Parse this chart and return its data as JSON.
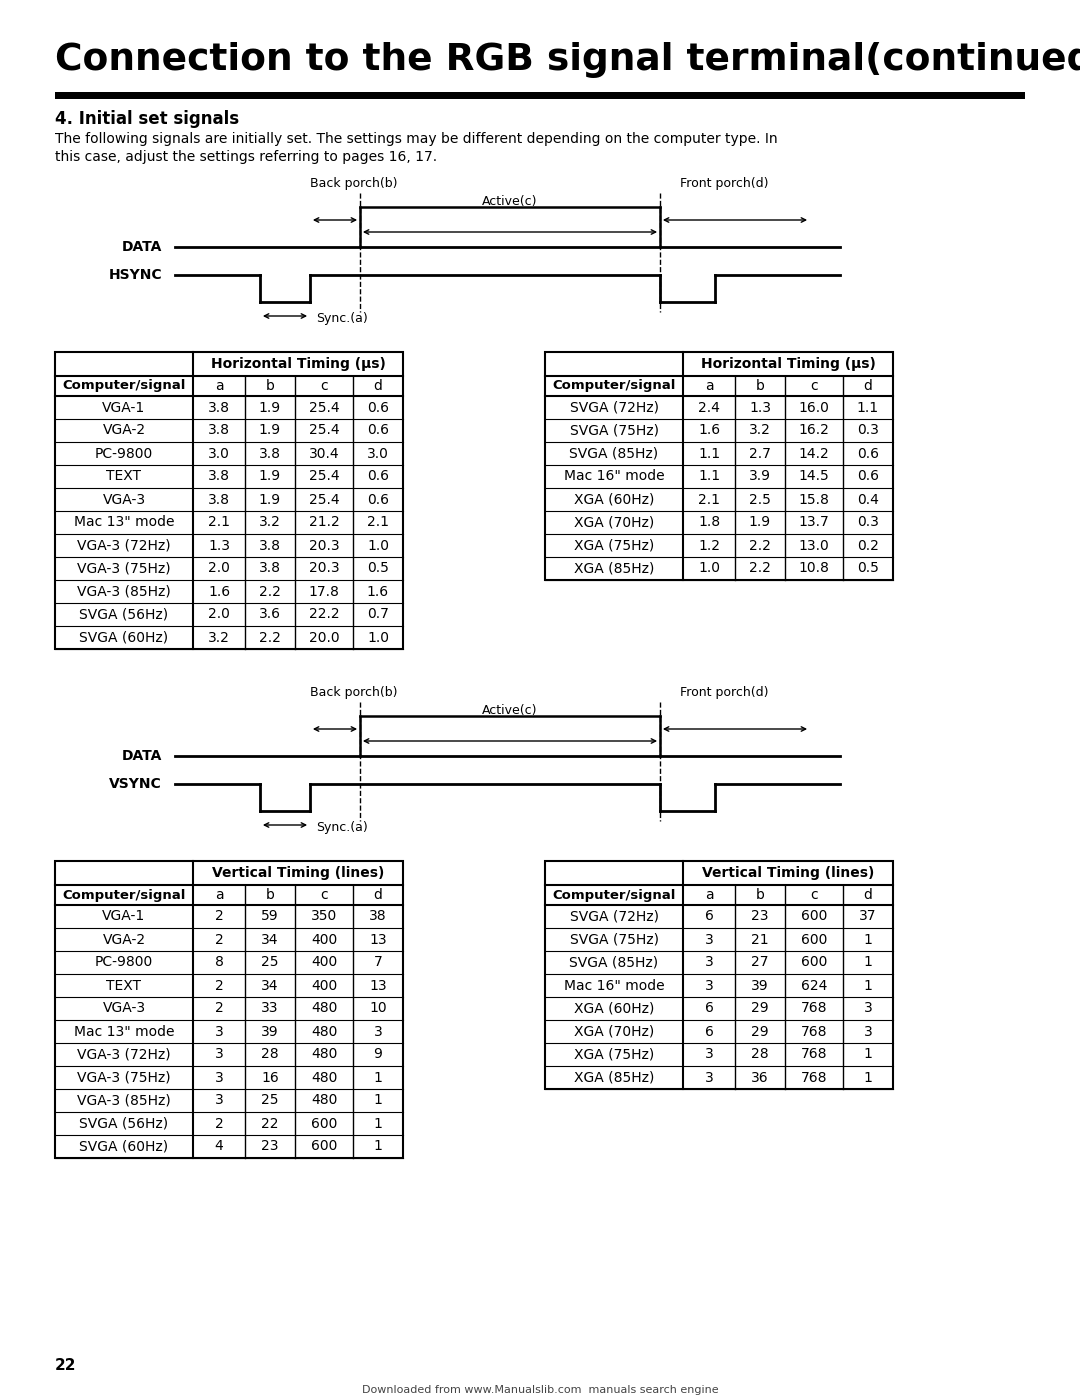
{
  "title": "Connection to the RGB signal terminal(continued)",
  "section": "4. Initial set signals",
  "desc1": "The following signals are initially set. The settings may be different depending on the computer type. In",
  "desc2": "this case, adjust the settings referring to pages 16, 17.",
  "horiz_table1": {
    "col_header": "Horizontal Timing (µs)",
    "rows": [
      [
        "VGA-1",
        "3.8",
        "1.9",
        "25.4",
        "0.6"
      ],
      [
        "VGA-2",
        "3.8",
        "1.9",
        "25.4",
        "0.6"
      ],
      [
        "PC-9800",
        "3.0",
        "3.8",
        "30.4",
        "3.0"
      ],
      [
        "TEXT",
        "3.8",
        "1.9",
        "25.4",
        "0.6"
      ],
      [
        "VGA-3",
        "3.8",
        "1.9",
        "25.4",
        "0.6"
      ],
      [
        "Mac 13\" mode",
        "2.1",
        "3.2",
        "21.2",
        "2.1"
      ],
      [
        "VGA-3 (72Hz)",
        "1.3",
        "3.8",
        "20.3",
        "1.0"
      ],
      [
        "VGA-3 (75Hz)",
        "2.0",
        "3.8",
        "20.3",
        "0.5"
      ],
      [
        "VGA-3 (85Hz)",
        "1.6",
        "2.2",
        "17.8",
        "1.6"
      ],
      [
        "SVGA (56Hz)",
        "2.0",
        "3.6",
        "22.2",
        "0.7"
      ],
      [
        "SVGA (60Hz)",
        "3.2",
        "2.2",
        "20.0",
        "1.0"
      ]
    ]
  },
  "horiz_table2": {
    "col_header": "Horizontal Timing (µs)",
    "rows": [
      [
        "SVGA (72Hz)",
        "2.4",
        "1.3",
        "16.0",
        "1.1"
      ],
      [
        "SVGA (75Hz)",
        "1.6",
        "3.2",
        "16.2",
        "0.3"
      ],
      [
        "SVGA (85Hz)",
        "1.1",
        "2.7",
        "14.2",
        "0.6"
      ],
      [
        "Mac 16\" mode",
        "1.1",
        "3.9",
        "14.5",
        "0.6"
      ],
      [
        "XGA (60Hz)",
        "2.1",
        "2.5",
        "15.8",
        "0.4"
      ],
      [
        "XGA (70Hz)",
        "1.8",
        "1.9",
        "13.7",
        "0.3"
      ],
      [
        "XGA (75Hz)",
        "1.2",
        "2.2",
        "13.0",
        "0.2"
      ],
      [
        "XGA (85Hz)",
        "1.0",
        "2.2",
        "10.8",
        "0.5"
      ]
    ]
  },
  "vert_table1": {
    "col_header": "Vertical Timing (lines)",
    "rows": [
      [
        "VGA-1",
        "2",
        "59",
        "350",
        "38"
      ],
      [
        "VGA-2",
        "2",
        "34",
        "400",
        "13"
      ],
      [
        "PC-9800",
        "8",
        "25",
        "400",
        "7"
      ],
      [
        "TEXT",
        "2",
        "34",
        "400",
        "13"
      ],
      [
        "VGA-3",
        "2",
        "33",
        "480",
        "10"
      ],
      [
        "Mac 13\" mode",
        "3",
        "39",
        "480",
        "3"
      ],
      [
        "VGA-3 (72Hz)",
        "3",
        "28",
        "480",
        "9"
      ],
      [
        "VGA-3 (75Hz)",
        "3",
        "16",
        "480",
        "1"
      ],
      [
        "VGA-3 (85Hz)",
        "3",
        "25",
        "480",
        "1"
      ],
      [
        "SVGA (56Hz)",
        "2",
        "22",
        "600",
        "1"
      ],
      [
        "SVGA (60Hz)",
        "4",
        "23",
        "600",
        "1"
      ]
    ]
  },
  "vert_table2": {
    "col_header": "Vertical Timing (lines)",
    "rows": [
      [
        "SVGA (72Hz)",
        "6",
        "23",
        "600",
        "37"
      ],
      [
        "SVGA (75Hz)",
        "3",
        "21",
        "600",
        "1"
      ],
      [
        "SVGA (85Hz)",
        "3",
        "27",
        "600",
        "1"
      ],
      [
        "Mac 16\" mode",
        "3",
        "39",
        "624",
        "1"
      ],
      [
        "XGA (60Hz)",
        "6",
        "29",
        "768",
        "3"
      ],
      [
        "XGA (70Hz)",
        "6",
        "29",
        "768",
        "3"
      ],
      [
        "XGA (75Hz)",
        "3",
        "28",
        "768",
        "1"
      ],
      [
        "XGA (85Hz)",
        "3",
        "36",
        "768",
        "1"
      ]
    ]
  },
  "footer": "22",
  "footer2": "Downloaded from www.Manualslib.com  manuals search engine"
}
